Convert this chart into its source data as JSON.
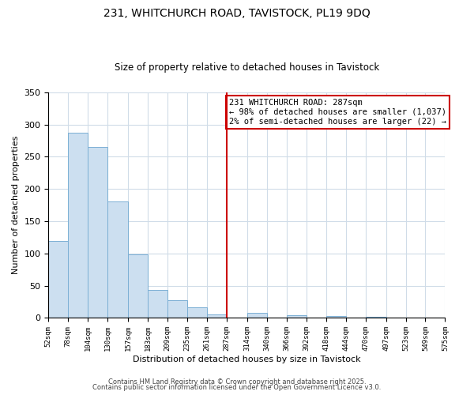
{
  "title": "231, WHITCHURCH ROAD, TAVISTOCK, PL19 9DQ",
  "subtitle": "Size of property relative to detached houses in Tavistock",
  "xlabel": "Distribution of detached houses by size in Tavistock",
  "ylabel": "Number of detached properties",
  "bar_edges": [
    52,
    78,
    104,
    130,
    157,
    183,
    209,
    235,
    261,
    287,
    314,
    340,
    366,
    392,
    418,
    444,
    470,
    497,
    523,
    549,
    575
  ],
  "bar_heights": [
    120,
    287,
    265,
    181,
    98,
    44,
    28,
    16,
    5,
    0,
    8,
    0,
    4,
    0,
    3,
    0,
    2,
    0,
    0,
    0,
    1
  ],
  "bar_color": "#ccdff0",
  "bar_edge_color": "#7bafd4",
  "property_line_x": 287,
  "property_line_color": "#cc0000",
  "annotation_title": "231 WHITCHURCH ROAD: 287sqm",
  "annotation_line1": "← 98% of detached houses are smaller (1,037)",
  "annotation_line2": "2% of semi-detached houses are larger (22) →",
  "annotation_box_color": "#cc0000",
  "ylim": [
    0,
    350
  ],
  "yticks": [
    0,
    50,
    100,
    150,
    200,
    250,
    300,
    350
  ],
  "footer1": "Contains HM Land Registry data © Crown copyright and database right 2025.",
  "footer2": "Contains public sector information licensed under the Open Government Licence v3.0.",
  "background_color": "#ffffff",
  "grid_color": "#d0dce8"
}
